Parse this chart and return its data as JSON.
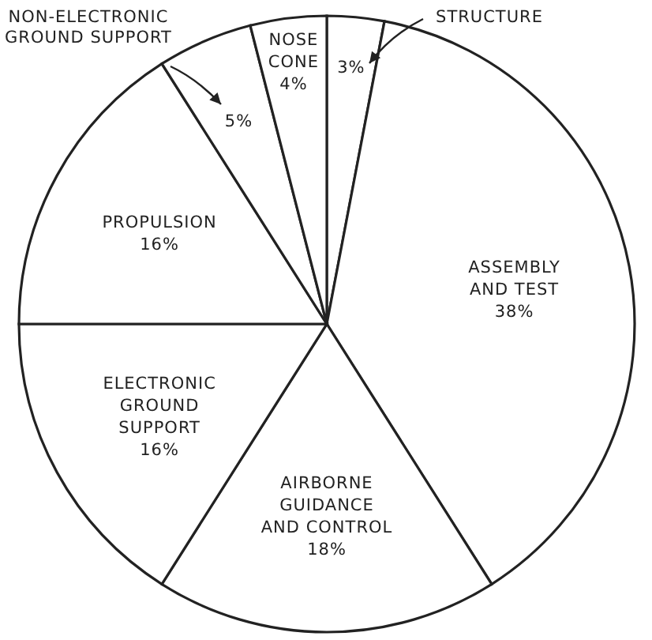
{
  "chart_data": {
    "type": "pie",
    "categories": [
      "STRUCTURE",
      "ASSEMBLY AND TEST",
      "AIRBORNE GUIDANCE AND CONTROL",
      "ELECTRONIC GROUND SUPPORT",
      "PROPULSION",
      "NON-ELECTRONIC GROUND SUPPORT",
      "NOSE CONE"
    ],
    "values": [
      3,
      38,
      18,
      16,
      16,
      5,
      4
    ],
    "value_labels": [
      "3%",
      "38%",
      "18%",
      "16%",
      "16%",
      "5%",
      "4%"
    ],
    "colors": [
      "#ffffff",
      "#ffffff",
      "#ffffff",
      "#ffffff",
      "#ffffff",
      "#ffffff",
      "#ffffff"
    ]
  }
}
